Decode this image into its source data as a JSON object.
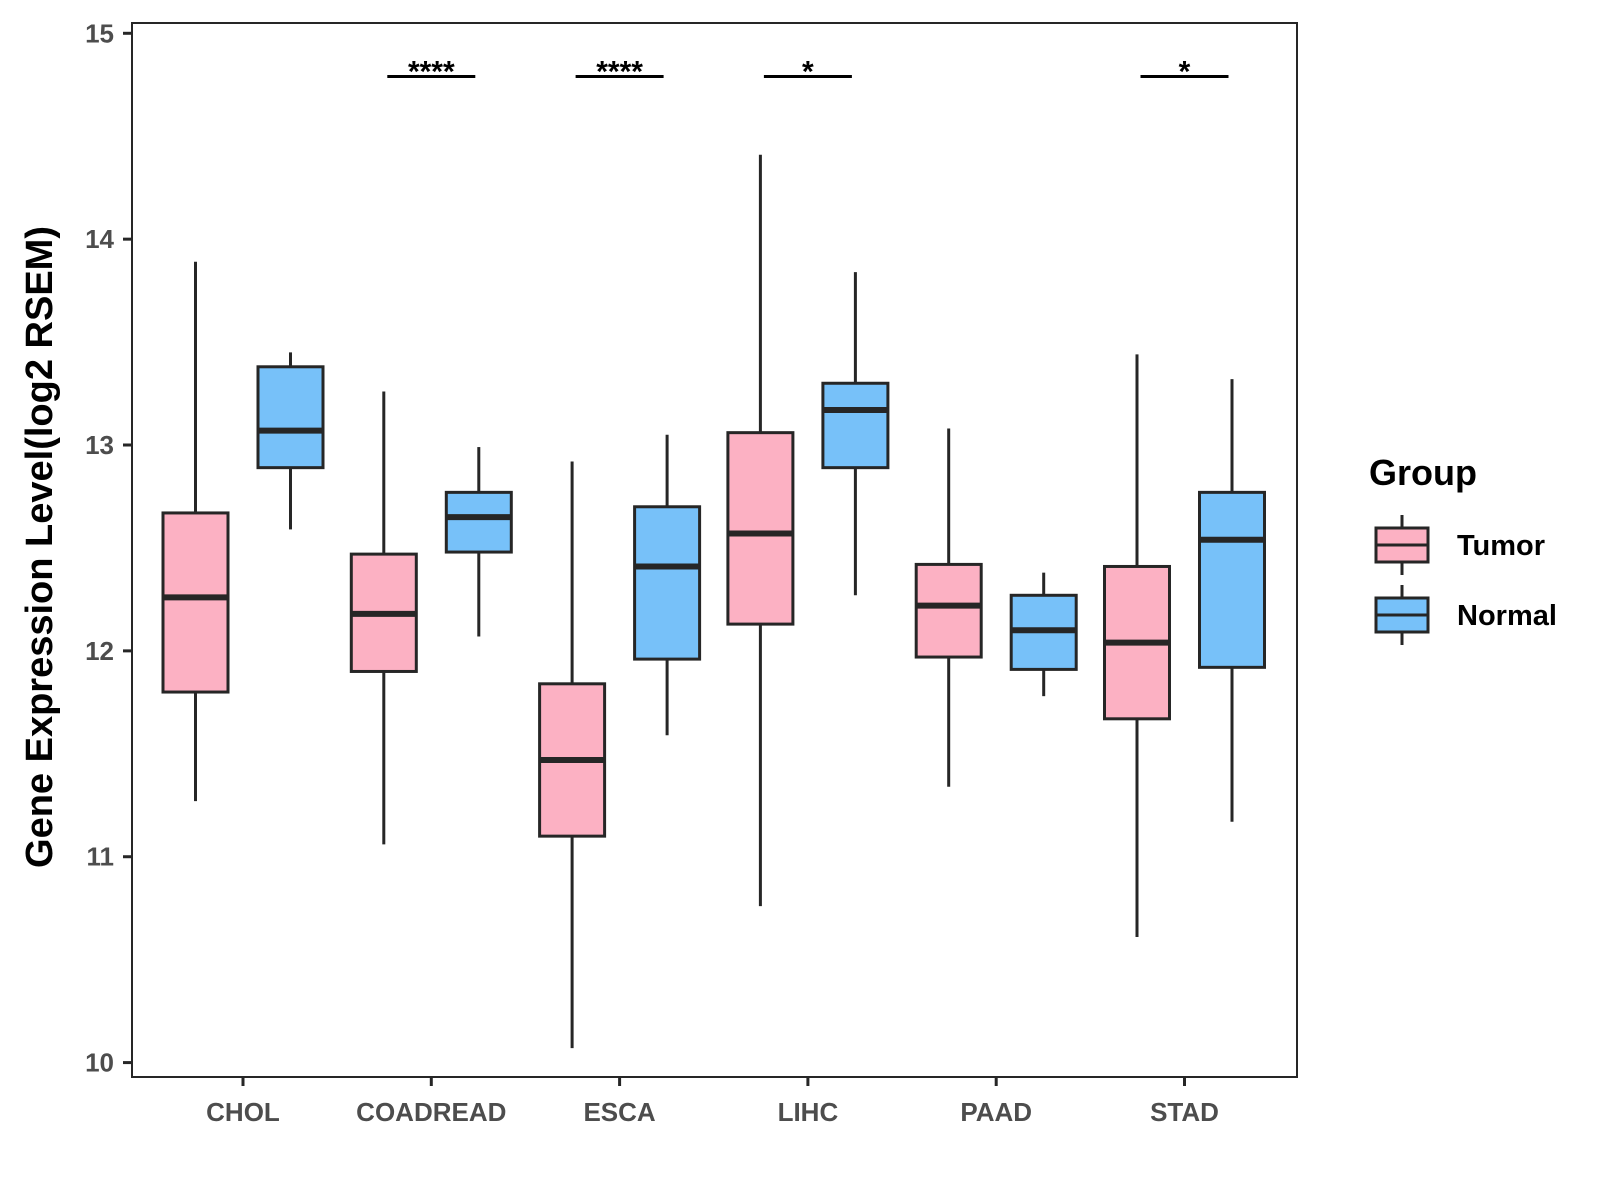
{
  "chart_data": {
    "type": "boxplot",
    "title": "",
    "xlabel": "",
    "ylabel": "Gene Expression Level(log2 RSEM)",
    "ylim": [
      9.93,
      15.05
    ],
    "yticks": [
      10,
      11,
      12,
      13,
      14,
      15
    ],
    "grid": false,
    "legend": {
      "title": "Group",
      "position": "right"
    },
    "categories": [
      "CHOL",
      "COADREAD",
      "ESCA",
      "LIHC",
      "PAAD",
      "STAD"
    ],
    "series": [
      {
        "name": "Tumor",
        "color": "#FCB1C3",
        "boxes": [
          {
            "min": 11.27,
            "q1": 11.8,
            "median": 12.26,
            "q3": 12.67,
            "max": 13.89
          },
          {
            "min": 11.06,
            "q1": 11.9,
            "median": 12.18,
            "q3": 12.47,
            "max": 13.26
          },
          {
            "min": 10.07,
            "q1": 11.1,
            "median": 11.47,
            "q3": 11.84,
            "max": 12.92
          },
          {
            "min": 10.76,
            "q1": 12.13,
            "median": 12.57,
            "q3": 13.06,
            "max": 14.41
          },
          {
            "min": 11.34,
            "q1": 11.97,
            "median": 12.22,
            "q3": 12.42,
            "max": 13.08
          },
          {
            "min": 10.61,
            "q1": 11.67,
            "median": 12.04,
            "q3": 12.41,
            "max": 13.44
          }
        ]
      },
      {
        "name": "Normal",
        "color": "#77C1F9",
        "boxes": [
          {
            "min": 12.59,
            "q1": 12.89,
            "median": 13.07,
            "q3": 13.38,
            "max": 13.45
          },
          {
            "min": 12.07,
            "q1": 12.48,
            "median": 12.65,
            "q3": 12.77,
            "max": 12.99
          },
          {
            "min": 11.59,
            "q1": 11.96,
            "median": 12.41,
            "q3": 12.7,
            "max": 13.05
          },
          {
            "min": 12.27,
            "q1": 12.89,
            "median": 13.17,
            "q3": 13.3,
            "max": 13.84
          },
          {
            "min": 11.78,
            "q1": 11.91,
            "median": 12.1,
            "q3": 12.27,
            "max": 12.38
          },
          {
            "min": 11.17,
            "q1": 11.92,
            "median": 12.54,
            "q3": 12.77,
            "max": 13.32
          }
        ]
      }
    ],
    "significance": [
      {
        "category": "COADREAD",
        "label": "****",
        "y": 14.79
      },
      {
        "category": "ESCA",
        "label": "****",
        "y": 14.79
      },
      {
        "category": "LIHC",
        "label": "*",
        "y": 14.79
      },
      {
        "category": "STAD",
        "label": "*",
        "y": 14.79
      }
    ]
  }
}
